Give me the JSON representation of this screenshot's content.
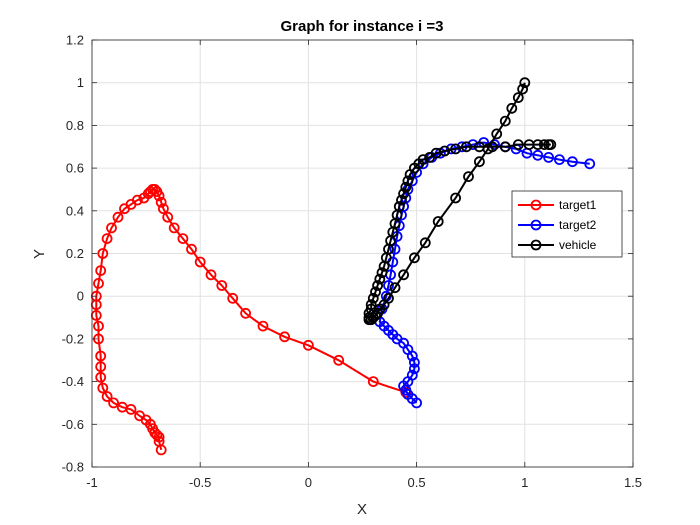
{
  "chart_data": {
    "type": "line",
    "title": "Graph for instance i =3",
    "xlabel": "X",
    "ylabel": "Y",
    "xlim": [
      -1,
      1.5
    ],
    "ylim": [
      -0.8,
      1.2
    ],
    "xticks": [
      "-1",
      "-0.5",
      "0",
      "0.5",
      "1",
      "1.5"
    ],
    "yticks": [
      "-0.8",
      "-0.6",
      "-0.4",
      "-0.2",
      "0",
      "0.2",
      "0.4",
      "0.6",
      "0.8",
      "1",
      "1.2"
    ],
    "grid": true,
    "legend_position": "right",
    "marker": "circle",
    "series": [
      {
        "name": "target1",
        "color": "#ff0000",
        "x": [
          -0.68,
          -0.69,
          -0.69,
          -0.7,
          -0.71,
          -0.72,
          -0.73,
          -0.75,
          -0.78,
          -0.82,
          -0.86,
          -0.9,
          -0.93,
          -0.95,
          -0.96,
          -0.96,
          -0.96,
          -0.97,
          -0.97,
          -0.98,
          -0.98,
          -0.98,
          -0.97,
          -0.96,
          -0.95,
          -0.93,
          -0.91,
          -0.88,
          -0.85,
          -0.82,
          -0.79,
          -0.76,
          -0.74,
          -0.73,
          -0.72,
          -0.71,
          -0.7,
          -0.69,
          -0.68,
          -0.67,
          -0.65,
          -0.62,
          -0.58,
          -0.54,
          -0.5,
          -0.45,
          -0.4,
          -0.35,
          -0.29,
          -0.21,
          -0.11,
          0.0,
          0.14,
          0.3,
          0.45
        ],
        "y": [
          -0.72,
          -0.68,
          -0.66,
          -0.65,
          -0.64,
          -0.62,
          -0.6,
          -0.58,
          -0.56,
          -0.53,
          -0.52,
          -0.5,
          -0.47,
          -0.43,
          -0.38,
          -0.33,
          -0.28,
          -0.2,
          -0.14,
          -0.09,
          -0.04,
          0.0,
          0.06,
          0.12,
          0.2,
          0.27,
          0.32,
          0.37,
          0.41,
          0.43,
          0.45,
          0.46,
          0.48,
          0.49,
          0.5,
          0.5,
          0.49,
          0.47,
          0.44,
          0.41,
          0.37,
          0.32,
          0.27,
          0.22,
          0.16,
          0.1,
          0.05,
          -0.01,
          -0.08,
          -0.14,
          -0.19,
          -0.23,
          -0.3,
          -0.4,
          -0.45
        ]
      },
      {
        "name": "target2",
        "color": "#0000ff",
        "x": [
          0.5,
          0.48,
          0.46,
          0.45,
          0.44,
          0.46,
          0.48,
          0.49,
          0.49,
          0.48,
          0.46,
          0.44,
          0.41,
          0.39,
          0.37,
          0.35,
          0.33,
          0.34,
          0.36,
          0.37,
          0.38,
          0.39,
          0.4,
          0.41,
          0.42,
          0.43,
          0.44,
          0.45,
          0.46,
          0.48,
          0.5,
          0.53,
          0.57,
          0.61,
          0.66,
          0.71,
          0.76,
          0.81,
          0.86,
          0.91,
          0.96,
          1.01,
          1.06,
          1.11,
          1.16,
          1.22,
          1.3
        ],
        "y": [
          -0.5,
          -0.48,
          -0.46,
          -0.44,
          -0.42,
          -0.4,
          -0.37,
          -0.34,
          -0.31,
          -0.28,
          -0.25,
          -0.22,
          -0.2,
          -0.18,
          -0.16,
          -0.14,
          -0.12,
          -0.06,
          0.0,
          0.05,
          0.1,
          0.16,
          0.22,
          0.28,
          0.33,
          0.38,
          0.42,
          0.46,
          0.5,
          0.54,
          0.58,
          0.62,
          0.65,
          0.67,
          0.69,
          0.7,
          0.71,
          0.72,
          0.71,
          0.7,
          0.69,
          0.67,
          0.66,
          0.65,
          0.64,
          0.63,
          0.62
        ]
      },
      {
        "name": "vehicle",
        "color": "#000000",
        "x": [
          1.0,
          0.99,
          0.97,
          0.94,
          0.91,
          0.87,
          0.83,
          0.79,
          0.74,
          0.68,
          0.6,
          0.54,
          0.49,
          0.44,
          0.4,
          0.37,
          0.35,
          0.33,
          0.32,
          0.31,
          0.3,
          0.29,
          0.28,
          0.28,
          0.28,
          0.29,
          0.29,
          0.3,
          0.31,
          0.32,
          0.33,
          0.34,
          0.35,
          0.36,
          0.37,
          0.38,
          0.39,
          0.4,
          0.41,
          0.42,
          0.43,
          0.44,
          0.45,
          0.46,
          0.47,
          0.49,
          0.51,
          0.53,
          0.56,
          0.59,
          0.63,
          0.68,
          0.73,
          0.79,
          0.85,
          0.91,
          0.97,
          1.02,
          1.06,
          1.09,
          1.11,
          1.12
        ],
        "y": [
          1.0,
          0.97,
          0.93,
          0.88,
          0.82,
          0.76,
          0.69,
          0.63,
          0.56,
          0.46,
          0.35,
          0.25,
          0.18,
          0.1,
          0.04,
          -0.01,
          -0.04,
          -0.06,
          -0.08,
          -0.09,
          -0.1,
          -0.11,
          -0.11,
          -0.1,
          -0.08,
          -0.06,
          -0.04,
          -0.01,
          0.02,
          0.05,
          0.08,
          0.11,
          0.14,
          0.18,
          0.22,
          0.26,
          0.3,
          0.34,
          0.38,
          0.42,
          0.45,
          0.48,
          0.51,
          0.54,
          0.57,
          0.6,
          0.62,
          0.64,
          0.65,
          0.67,
          0.68,
          0.69,
          0.7,
          0.7,
          0.7,
          0.7,
          0.71,
          0.71,
          0.71,
          0.71,
          0.71,
          0.71
        ]
      }
    ]
  }
}
